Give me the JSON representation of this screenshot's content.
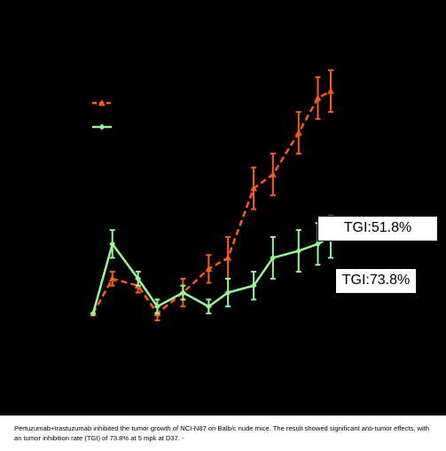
{
  "chart_data": {
    "type": "line",
    "title": "",
    "xlabel": "",
    "ylabel": "",
    "x": [
      0,
      3,
      7,
      10,
      14,
      18,
      21,
      25,
      28,
      32,
      35,
      37
    ],
    "series": [
      {
        "name": "",
        "color": "#ff5a1e",
        "style": "dashed",
        "marker": "triangle",
        "values": [
          0.0,
          0.25,
          0.2,
          0.0,
          0.15,
          0.32,
          0.4,
          0.9,
          1.0,
          1.3,
          1.55,
          1.6
        ],
        "error": [
          0.0,
          0.05,
          0.05,
          0.05,
          0.1,
          0.1,
          0.15,
          0.15,
          0.15,
          0.15,
          0.15,
          0.15
        ]
      },
      {
        "name": "",
        "color": "#99f59a",
        "style": "solid",
        "marker": "diamond",
        "values": [
          0.0,
          0.5,
          0.25,
          0.05,
          0.15,
          0.05,
          0.15,
          0.2,
          0.4,
          0.45,
          0.5,
          0.55
        ],
        "error": [
          0.0,
          0.1,
          0.05,
          0.05,
          0.05,
          0.05,
          0.1,
          0.1,
          0.15,
          0.15,
          0.15,
          0.15
        ]
      }
    ],
    "ylim": [
      -0.3,
      2.0
    ],
    "xlim": [
      0,
      37
    ],
    "legend": "upper-left",
    "annotations": [
      "TGI:51.8%",
      "TGI:73.8%"
    ]
  },
  "caption": "Pertuzumab+trastuzumab inhibited the tumor growth of NCI-N87 on Balb/c nude mice. The result showed significant anti-tumor effects, with an tumor inhibition rate (TGI) of 73.8% at 5 mpk at D37. -"
}
